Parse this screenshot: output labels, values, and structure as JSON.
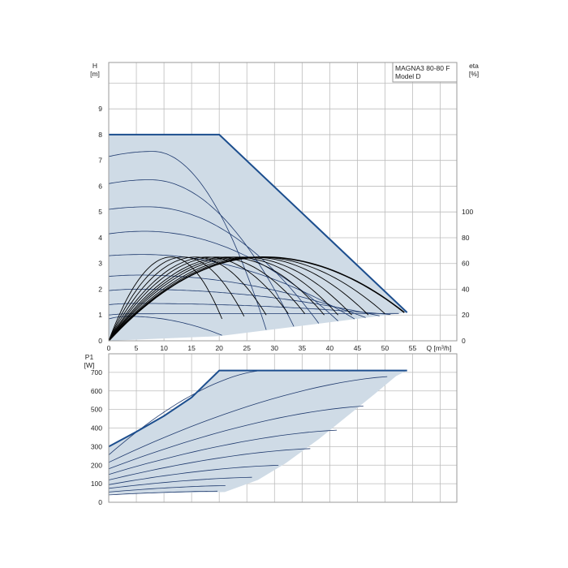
{
  "chart_data": [
    {
      "type": "line",
      "panel": "head",
      "xlabel": "Q [m³/h]",
      "ylabel_left": "H",
      "ylabel_left_unit": "[m]",
      "ylabel_right": "eta",
      "ylabel_right_unit": "[%]",
      "xlim": [
        0,
        63
      ],
      "ylim": [
        0,
        10.8
      ],
      "x_ticks": [
        0,
        5,
        10,
        15,
        20,
        25,
        30,
        35,
        40,
        45,
        50,
        55
      ],
      "y_ticks": [
        0,
        1,
        2,
        3,
        4,
        5,
        6,
        7,
        8,
        9
      ],
      "y2_ticks": [
        0,
        20,
        40,
        60,
        80,
        100
      ],
      "y2_scale_note": "eta 20% per 1 m of H",
      "legend": {
        "line1": "MAGNA3 80-80 F",
        "line2": "Model D",
        "placement": "top-right"
      },
      "grid": true,
      "colors": {
        "curve": "#1f3a6e",
        "outline": "#1c4e8e",
        "area": "#cfdbe6",
        "efficiency": "#000000"
      },
      "max_curve": [
        [
          0,
          8
        ],
        [
          20,
          8
        ],
        [
          54,
          1.1
        ]
      ],
      "area_bottom": [
        [
          0,
          0
        ],
        [
          20,
          0.18
        ],
        [
          54,
          1.1
        ]
      ],
      "head_curves": [
        {
          "h0": 7.15,
          "hmax": 7.35,
          "qpeak": 8,
          "qend": 28.5
        },
        {
          "h0": 6.1,
          "hmax": 6.25,
          "qpeak": 7.5,
          "qend": 33.5
        },
        {
          "h0": 5.1,
          "hmax": 5.2,
          "qpeak": 7,
          "qend": 38
        },
        {
          "h0": 4.15,
          "hmax": 4.25,
          "qpeak": 6.5,
          "qend": 41.5
        },
        {
          "h0": 3.3,
          "hmax": 3.35,
          "qpeak": 6,
          "qend": 44.5
        },
        {
          "h0": 2.5,
          "hmax": 2.55,
          "qpeak": 5.5,
          "qend": 46.5
        },
        {
          "h0": 1.95,
          "hmax": 2.0,
          "qpeak": 5,
          "qend": 49
        },
        {
          "h0": 1.4,
          "hmax": 1.45,
          "qpeak": 4.5,
          "qend": 51
        },
        {
          "h0": 1.0,
          "hmax": 1.05,
          "qpeak": 4,
          "qend": 52.5
        },
        {
          "h0": 0.85,
          "hmax": 0.95,
          "qpeak": 3.5,
          "qend": 20.5
        }
      ],
      "efficiency_curves": [
        {
          "qend": 53.5,
          "yend": 1.1
        },
        {
          "qend": 20.5,
          "yend": 0.85
        },
        {
          "qend": 24.5,
          "yend": 0.95
        },
        {
          "qend": 28.5,
          "yend": 1.0
        },
        {
          "qend": 32.5,
          "yend": 1.05
        },
        {
          "qend": 35.5,
          "yend": 1.05
        },
        {
          "qend": 39,
          "yend": 1.0
        },
        {
          "qend": 41.5,
          "yend": 1.0
        },
        {
          "qend": 44,
          "yend": 1.0
        },
        {
          "qend": 47,
          "yend": 1.0
        },
        {
          "qend": 50,
          "yend": 1.05
        }
      ]
    },
    {
      "type": "line",
      "panel": "power",
      "ylabel": "P1",
      "ylabel_unit": "[W]",
      "xlim": [
        0,
        63
      ],
      "ylim": [
        0,
        800
      ],
      "y_ticks": [
        0,
        100,
        200,
        300,
        400,
        500,
        600,
        700
      ],
      "grid": true,
      "colors": {
        "curve": "#1f3a6e",
        "outline": "#1c4e8e",
        "area": "#cfdbe6"
      },
      "max_curve": [
        [
          0,
          300
        ],
        [
          5,
          380
        ],
        [
          10,
          465
        ],
        [
          15,
          565
        ],
        [
          20,
          710
        ],
        [
          54,
          710
        ]
      ],
      "area_right": [
        [
          54,
          710
        ],
        [
          52,
          680
        ],
        [
          48,
          580
        ],
        [
          43,
          460
        ],
        [
          38,
          340
        ],
        [
          32,
          210
        ],
        [
          27,
          120
        ],
        [
          21,
          55
        ],
        [
          0,
          45
        ]
      ],
      "power_curves": [
        {
          "p0": 255,
          "pend": 710,
          "qend": 28
        },
        {
          "p0": 215,
          "pend": 680,
          "qend": 52.5
        },
        {
          "p0": 180,
          "pend": 520,
          "qend": 48
        },
        {
          "p0": 150,
          "pend": 390,
          "qend": 43
        },
        {
          "p0": 120,
          "pend": 290,
          "qend": 38
        },
        {
          "p0": 95,
          "pend": 200,
          "qend": 32
        },
        {
          "p0": 75,
          "pend": 135,
          "qend": 27
        },
        {
          "p0": 55,
          "pend": 90,
          "qend": 22
        },
        {
          "p0": 40,
          "pend": 60,
          "qend": 20.5
        }
      ]
    }
  ]
}
